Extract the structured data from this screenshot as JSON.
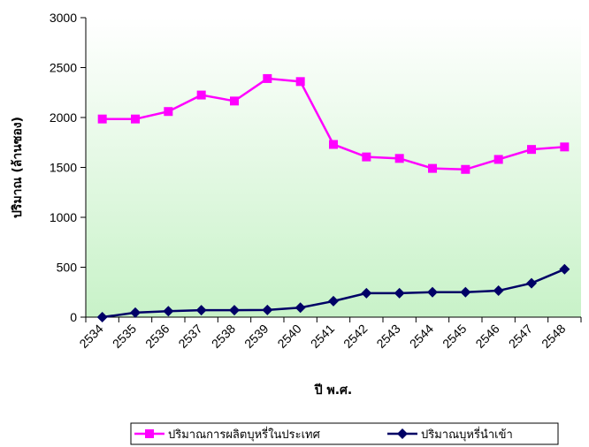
{
  "chart_data": {
    "type": "line",
    "categories": [
      "2534",
      "2535",
      "2536",
      "2537",
      "2538",
      "2539",
      "2540",
      "2541",
      "2542",
      "2543",
      "2544",
      "2545",
      "2546",
      "2547",
      "2548"
    ],
    "series": [
      {
        "name": "ปริมาณการผลิตบุหรี่ในประเทศ",
        "color": "#ff00ff",
        "marker": "square",
        "values": [
          1985,
          1985,
          2060,
          2225,
          2165,
          2390,
          2360,
          1730,
          1605,
          1590,
          1490,
          1480,
          1580,
          1680,
          1705
        ]
      },
      {
        "name": "ปริมาณบุหรี่นำเข้า",
        "color": "#000066",
        "marker": "diamond",
        "values": [
          0,
          45,
          60,
          70,
          70,
          72,
          95,
          160,
          240,
          240,
          250,
          250,
          265,
          340,
          480
        ]
      }
    ],
    "xlabel": "ปี พ.ศ.",
    "ylabel": "ปริมาณ (ล้านซอง)",
    "ylim": [
      0,
      3000
    ],
    "yticks": [
      "0",
      "500",
      "1000",
      "1500",
      "2000",
      "2500",
      "3000"
    ],
    "legend_position": "bottom",
    "grid": false,
    "background_gradient": [
      "#ffffff",
      "#c8f2c8"
    ]
  }
}
